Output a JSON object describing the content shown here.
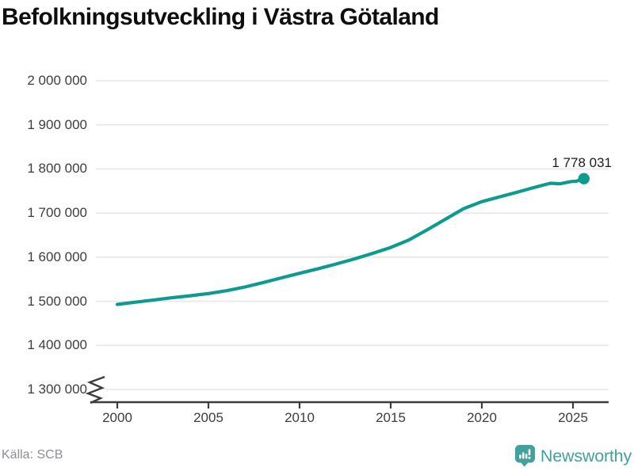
{
  "title": "Befolkningsutveckling i Västra Götaland",
  "source": "Källa: SCB",
  "branding": {
    "name": "Newsworthy",
    "color": "#44a09c",
    "icon": "newsworthy-pin-barchart-icon"
  },
  "chart_data": {
    "type": "line",
    "title": "Befolkningsutveckling i Västra Götaland",
    "xlabel": "",
    "ylabel": "",
    "grid": "horizontal",
    "y_axis_break": true,
    "y_range": [
      1300000,
      2000000
    ],
    "x_range": [
      1998.8,
      2027
    ],
    "line_color": "#0d9b8f",
    "grid_color": "#e7e7e7",
    "axis_color": "#3c3c3c",
    "end_label": "1 778 031",
    "end_value": 1778031,
    "y_ticks": [
      {
        "value": 1300000,
        "label": "1 300 000"
      },
      {
        "value": 1400000,
        "label": "1 400 000"
      },
      {
        "value": 1500000,
        "label": "1 500 000"
      },
      {
        "value": 1600000,
        "label": "1 600 000"
      },
      {
        "value": 1700000,
        "label": "1 700 000"
      },
      {
        "value": 1800000,
        "label": "1 800 000"
      },
      {
        "value": 1900000,
        "label": "1 900 000"
      },
      {
        "value": 2000000,
        "label": "2 000 000"
      }
    ],
    "x_ticks": [
      {
        "value": 2000,
        "label": "2000"
      },
      {
        "value": 2005,
        "label": "2005"
      },
      {
        "value": 2010,
        "label": "2010"
      },
      {
        "value": 2015,
        "label": "2015"
      },
      {
        "value": 2020,
        "label": "2020"
      },
      {
        "value": 2025,
        "label": "2025"
      }
    ],
    "series": [
      {
        "points": [
          [
            2000,
            1493000
          ],
          [
            2001,
            1498000
          ],
          [
            2002,
            1503000
          ],
          [
            2003,
            1508000
          ],
          [
            2004,
            1512500
          ],
          [
            2005,
            1517500
          ],
          [
            2006,
            1524000
          ],
          [
            2007,
            1532500
          ],
          [
            2008,
            1542500
          ],
          [
            2009,
            1553000
          ],
          [
            2010,
            1563500
          ],
          [
            2011,
            1573500
          ],
          [
            2012,
            1584500
          ],
          [
            2013,
            1596000
          ],
          [
            2014,
            1608500
          ],
          [
            2015,
            1622000
          ],
          [
            2016,
            1639000
          ],
          [
            2017,
            1662000
          ],
          [
            2018,
            1686000
          ],
          [
            2019,
            1710000
          ],
          [
            2020,
            1726000
          ],
          [
            2021,
            1737000
          ],
          [
            2022,
            1748000
          ],
          [
            2023,
            1759500
          ],
          [
            2023.75,
            1767500
          ],
          [
            2024.3,
            1766500
          ],
          [
            2024.9,
            1771500
          ],
          [
            2025.2,
            1772500
          ],
          [
            2025.6,
            1778031
          ]
        ]
      }
    ]
  }
}
